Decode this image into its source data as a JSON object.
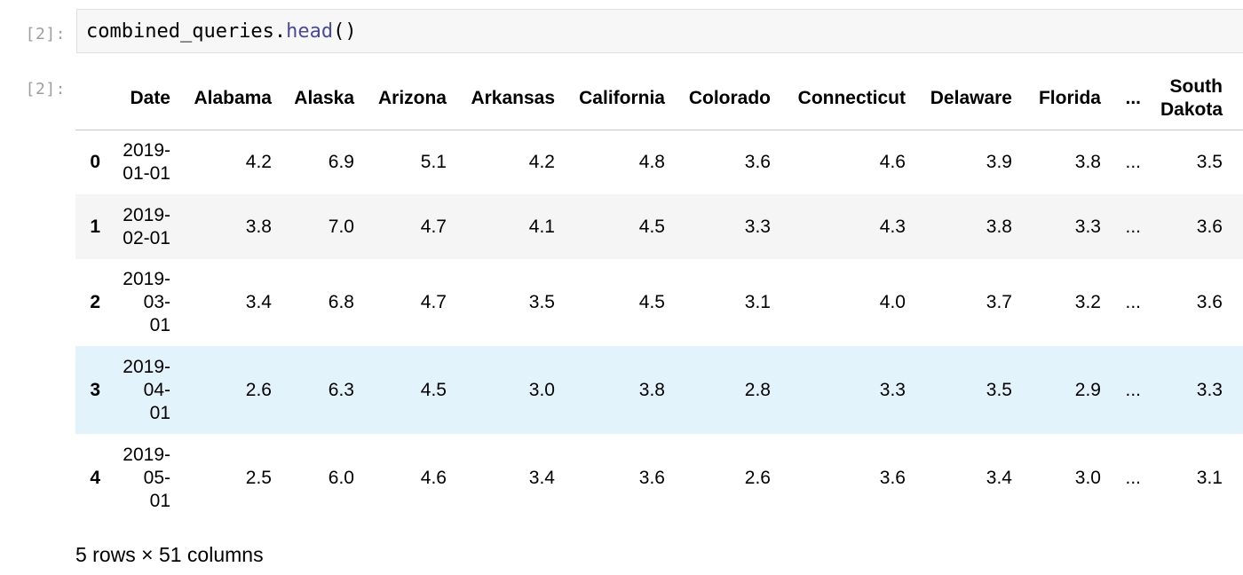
{
  "input_prompt": "[2]:",
  "output_prompt": "[2]:",
  "code": {
    "object": "combined_queries",
    "dot": ".",
    "method": "head",
    "parens": "()"
  },
  "table": {
    "columns": [
      "Date",
      "Alabama",
      "Alaska",
      "Arizona",
      "Arkansas",
      "California",
      "Colorado",
      "Connecticut",
      "Delaware",
      "Florida",
      "...",
      "South Dakota"
    ],
    "rows": [
      {
        "index": "0",
        "date": "2019-01-01",
        "values": [
          "4.2",
          "6.9",
          "5.1",
          "4.2",
          "4.8",
          "3.6",
          "4.6",
          "3.9",
          "3.8",
          "...",
          "3.5"
        ]
      },
      {
        "index": "1",
        "date": "2019-02-01",
        "values": [
          "3.8",
          "7.0",
          "4.7",
          "4.1",
          "4.5",
          "3.3",
          "4.3",
          "3.8",
          "3.3",
          "...",
          "3.6"
        ]
      },
      {
        "index": "2",
        "date": "2019-03-01",
        "values": [
          "3.4",
          "6.8",
          "4.7",
          "3.5",
          "4.5",
          "3.1",
          "4.0",
          "3.7",
          "3.2",
          "...",
          "3.6"
        ]
      },
      {
        "index": "3",
        "date": "2019-04-01",
        "values": [
          "2.6",
          "6.3",
          "4.5",
          "3.0",
          "3.8",
          "2.8",
          "3.3",
          "3.5",
          "2.9",
          "...",
          "3.3"
        ]
      },
      {
        "index": "4",
        "date": "2019-05-01",
        "values": [
          "2.5",
          "6.0",
          "4.6",
          "3.4",
          "3.6",
          "2.6",
          "3.6",
          "3.4",
          "3.0",
          "...",
          "3.1"
        ]
      }
    ]
  },
  "footer": "5 rows × 51 columns",
  "colors": {
    "hover_row": "#e3f3fc",
    "striped_row": "#f5f5f5",
    "prompt": "#9e9e9e",
    "code_bg": "#f7f7f7"
  }
}
